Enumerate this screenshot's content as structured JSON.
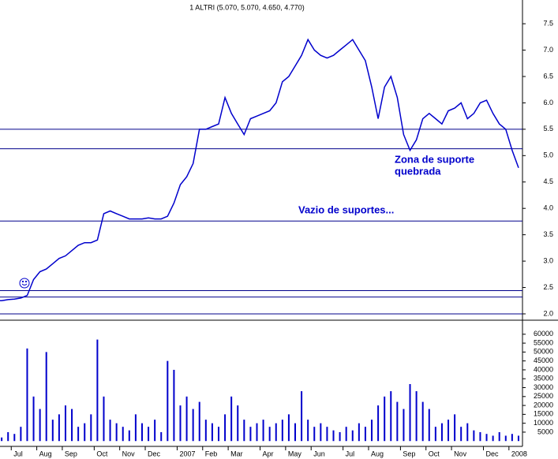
{
  "chart_data": [
    {
      "type": "line",
      "title": "1 ALTRI (5.070, 5.070, 4.650, 4.770)",
      "color": "#0000cc",
      "values": [
        2.25,
        2.25,
        2.27,
        2.28,
        2.3,
        2.35,
        2.65,
        2.8,
        2.85,
        2.95,
        3.05,
        3.1,
        3.2,
        3.3,
        3.35,
        3.35,
        3.4,
        3.9,
        3.95,
        3.9,
        3.85,
        3.8,
        3.8,
        3.8,
        3.82,
        3.8,
        3.8,
        3.85,
        4.1,
        4.45,
        4.6,
        4.85,
        5.5,
        5.5,
        5.55,
        5.6,
        6.1,
        5.8,
        5.6,
        5.4,
        5.7,
        5.75,
        5.8,
        5.85,
        6.0,
        6.4,
        6.5,
        6.7,
        6.9,
        7.2,
        7.0,
        6.9,
        6.85,
        6.9,
        7.0,
        7.1,
        7.2,
        7.0,
        6.8,
        6.3,
        5.7,
        6.3,
        6.5,
        6.1,
        5.4,
        5.1,
        5.3,
        5.7,
        5.8,
        5.7,
        5.6,
        5.85,
        5.9,
        6.0,
        5.7,
        5.8,
        6.0,
        6.05,
        5.8,
        5.6,
        5.5,
        5.1,
        4.77
      ],
      "ylim": [
        1.895,
        7.95
      ],
      "yticks": [
        {
          "value": 2.0,
          "label": "2.0"
        },
        {
          "value": 2.5,
          "label": "2.5"
        },
        {
          "value": 3.0,
          "label": "3.0"
        },
        {
          "value": 3.5,
          "label": "3.5"
        },
        {
          "value": 4.0,
          "label": "4.0"
        },
        {
          "value": 4.5,
          "label": "4.5"
        },
        {
          "value": 5.0,
          "label": "5.0"
        },
        {
          "value": 5.5,
          "label": "5.5"
        },
        {
          "value": 6.0,
          "label": "6.0"
        },
        {
          "value": 6.5,
          "label": "6.5"
        },
        {
          "value": 7.0,
          "label": "7.0"
        },
        {
          "value": 7.5,
          "label": "7.5"
        }
      ],
      "hlines": [
        5.5,
        5.13,
        3.76,
        2.44,
        2.32,
        2.0
      ],
      "hline_color": "#00008b",
      "annotations": [
        "Zona de suporte",
        "quebrada",
        "Vazio de suportes..."
      ]
    },
    {
      "type": "bar",
      "color": "#0000cc",
      "categories": [
        null,
        null,
        null,
        "Jul",
        null,
        null,
        null,
        "Aug",
        null,
        null,
        null,
        "Sep",
        null,
        null,
        null,
        null,
        "Oct",
        null,
        null,
        null,
        "Nov",
        null,
        null,
        null,
        "Dec",
        null,
        null,
        null,
        null,
        "2007",
        null,
        null,
        null,
        "Feb",
        null,
        null,
        null,
        "Mar",
        null,
        null,
        null,
        null,
        "Apr",
        null,
        null,
        null,
        "May",
        null,
        null,
        null,
        "Jun",
        null,
        null,
        null,
        null,
        "Jul",
        null,
        null,
        null,
        "Aug",
        null,
        null,
        null,
        null,
        "Sep",
        null,
        null,
        null,
        "Oct",
        null,
        null,
        null,
        "Nov",
        null,
        null,
        null,
        null,
        "Dec",
        null,
        null,
        null,
        "2008",
        null
      ],
      "values": [
        3000,
        2000,
        5000,
        4000,
        8000,
        52000,
        25000,
        18000,
        50000,
        12000,
        15000,
        20000,
        18000,
        8000,
        10000,
        15000,
        57000,
        25000,
        12000,
        10000,
        8000,
        6000,
        15000,
        10000,
        8000,
        12000,
        5000,
        45000,
        40000,
        20000,
        25000,
        18000,
        22000,
        12000,
        10000,
        8000,
        15000,
        25000,
        20000,
        12000,
        8000,
        10000,
        12000,
        8000,
        10000,
        12000,
        15000,
        10000,
        28000,
        12000,
        8000,
        10000,
        8000,
        6000,
        5000,
        8000,
        6000,
        10000,
        8000,
        12000,
        20000,
        25000,
        28000,
        22000,
        18000,
        32000,
        28000,
        22000,
        18000,
        8000,
        10000,
        12000,
        15000,
        8000,
        10000,
        6000,
        5000,
        4000,
        3000,
        5000,
        3000,
        4000,
        3000
      ],
      "ylim": [
        -3000,
        67000
      ],
      "yticks": [
        5000,
        10000,
        15000,
        20000,
        25000,
        30000,
        35000,
        40000,
        45000,
        50000,
        55000,
        60000
      ]
    }
  ]
}
